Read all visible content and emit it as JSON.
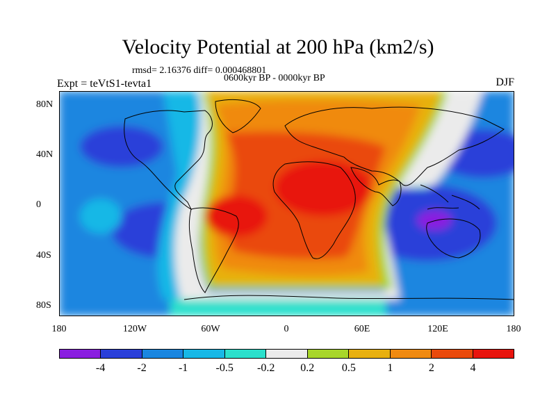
{
  "title": "Velocity Potential at 200 hPa (km2/s)",
  "stats_line": "rmsd= 2.16376 diff= 0.000468801",
  "period_line": "0600kyr BP - 0000kyr BP",
  "experiment_label": "Expt = teVtS1-tevta1",
  "season_label": "DJF",
  "lat_labels": [
    "80N",
    "40N",
    "0",
    "40S",
    "80S"
  ],
  "lon_labels": [
    "180",
    "120W",
    "60W",
    "0",
    "60E",
    "120E",
    "180"
  ],
  "colorbar": {
    "colors": [
      "#8a1ee0",
      "#2a3fd9",
      "#1a86e0",
      "#18b8e6",
      "#2be0cc",
      "#ebebeb",
      "#a8d62a",
      "#e8b00f",
      "#f08a10",
      "#ea4a0c",
      "#e8140e"
    ],
    "labels": [
      "-4",
      "-2",
      "-1",
      "-0.5",
      "-0.2",
      "0.2",
      "0.5",
      "1",
      "2",
      "4"
    ]
  }
}
